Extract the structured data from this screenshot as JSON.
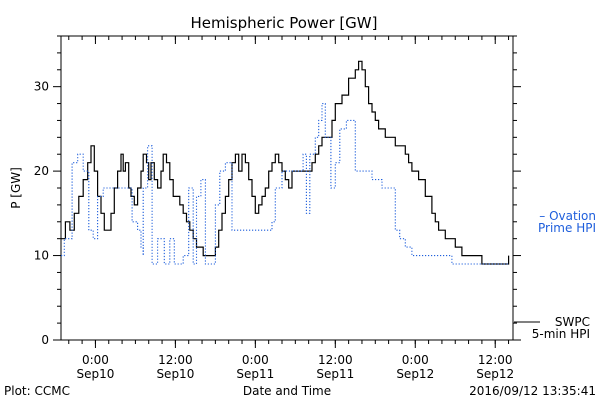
{
  "chart_data": {
    "type": "line",
    "title": "Hemispheric Power [GW]",
    "xlabel": "Date and Time",
    "ylabel": "P [GW]",
    "ylim": [
      0,
      36
    ],
    "yticks": [
      0,
      10,
      20,
      30
    ],
    "xlim": [
      "2016-09-09T18:50",
      "2016-09-12T14:40"
    ],
    "xticks": [
      {
        "t": "2016-09-10T00:00",
        "time": "0:00",
        "date": "Sep10"
      },
      {
        "t": "2016-09-10T12:00",
        "time": "12:00",
        "date": "Sep10"
      },
      {
        "t": "2016-09-11T00:00",
        "time": "0:00",
        "date": "Sep11"
      },
      {
        "t": "2016-09-11T12:00",
        "time": "12:00",
        "date": "Sep11"
      },
      {
        "t": "2016-09-12T00:00",
        "time": "0:00",
        "date": "Sep12"
      },
      {
        "t": "2016-09-12T12:00",
        "time": "12:00",
        "date": "Sep12"
      }
    ],
    "grid": false,
    "footer": {
      "left": "Plot: CCMC",
      "right": "2016/09/12 13:35:41"
    },
    "series": [
      {
        "name": "SWPC 5-min HPI",
        "legend_lines": [
          "SWPC",
          "5-min HPI"
        ],
        "color": "#000000",
        "style": "solid",
        "points": [
          [
            "2016-09-09T18:50",
            12
          ],
          [
            "2016-09-09T19:30",
            14
          ],
          [
            "2016-09-09T20:10",
            13
          ],
          [
            "2016-09-09T20:50",
            15
          ],
          [
            "2016-09-09T21:30",
            17
          ],
          [
            "2016-09-09T22:10",
            19
          ],
          [
            "2016-09-09T22:50",
            21
          ],
          [
            "2016-09-09T23:20",
            23
          ],
          [
            "2016-09-09T23:50",
            20
          ],
          [
            "2016-09-10T00:20",
            17
          ],
          [
            "2016-09-10T00:50",
            15
          ],
          [
            "2016-09-10T01:20",
            13
          ],
          [
            "2016-09-10T01:50",
            13
          ],
          [
            "2016-09-10T02:20",
            15
          ],
          [
            "2016-09-10T02:50",
            18
          ],
          [
            "2016-09-10T03:20",
            20
          ],
          [
            "2016-09-10T03:50",
            22
          ],
          [
            "2016-09-10T04:10",
            20
          ],
          [
            "2016-09-10T04:30",
            21
          ],
          [
            "2016-09-10T05:00",
            18
          ],
          [
            "2016-09-10T05:20",
            17
          ],
          [
            "2016-09-10T05:50",
            16
          ],
          [
            "2016-09-10T06:20",
            18
          ],
          [
            "2016-09-10T06:50",
            20
          ],
          [
            "2016-09-10T07:10",
            22
          ],
          [
            "2016-09-10T07:40",
            21
          ],
          [
            "2016-09-10T08:00",
            19
          ],
          [
            "2016-09-10T08:20",
            21
          ],
          [
            "2016-09-10T08:50",
            19
          ],
          [
            "2016-09-10T09:20",
            18
          ],
          [
            "2016-09-10T09:50",
            20
          ],
          [
            "2016-09-10T10:10",
            22
          ],
          [
            "2016-09-10T10:40",
            21
          ],
          [
            "2016-09-10T11:10",
            19
          ],
          [
            "2016-09-10T11:40",
            17
          ],
          [
            "2016-09-10T12:10",
            17
          ],
          [
            "2016-09-10T12:40",
            16
          ],
          [
            "2016-09-10T13:10",
            15
          ],
          [
            "2016-09-10T13:40",
            14
          ],
          [
            "2016-09-10T14:10",
            13
          ],
          [
            "2016-09-10T14:40",
            12
          ],
          [
            "2016-09-10T15:10",
            11
          ],
          [
            "2016-09-10T15:40",
            11
          ],
          [
            "2016-09-10T16:10",
            10
          ],
          [
            "2016-09-10T16:40",
            10
          ],
          [
            "2016-09-10T17:20",
            10
          ],
          [
            "2016-09-10T18:00",
            11
          ],
          [
            "2016-09-10T18:30",
            13
          ],
          [
            "2016-09-10T19:00",
            15
          ],
          [
            "2016-09-10T19:30",
            17
          ],
          [
            "2016-09-10T20:00",
            19
          ],
          [
            "2016-09-10T20:30",
            21
          ],
          [
            "2016-09-10T21:00",
            22
          ],
          [
            "2016-09-10T21:30",
            20
          ],
          [
            "2016-09-10T22:00",
            22
          ],
          [
            "2016-09-10T22:30",
            21
          ],
          [
            "2016-09-10T23:00",
            19
          ],
          [
            "2016-09-10T23:30",
            17
          ],
          [
            "2016-09-11T00:00",
            15
          ],
          [
            "2016-09-11T00:30",
            16
          ],
          [
            "2016-09-11T01:00",
            17
          ],
          [
            "2016-09-11T01:30",
            18
          ],
          [
            "2016-09-11T02:00",
            20
          ],
          [
            "2016-09-11T02:30",
            21
          ],
          [
            "2016-09-11T03:00",
            22
          ],
          [
            "2016-09-11T03:30",
            21
          ],
          [
            "2016-09-11T04:00",
            20
          ],
          [
            "2016-09-11T04:30",
            19
          ],
          [
            "2016-09-11T05:00",
            18
          ],
          [
            "2016-09-11T05:30",
            20
          ],
          [
            "2016-09-11T06:30",
            20
          ],
          [
            "2016-09-11T07:30",
            20
          ],
          [
            "2016-09-11T08:30",
            21
          ],
          [
            "2016-09-11T09:00",
            22
          ],
          [
            "2016-09-11T09:30",
            23
          ],
          [
            "2016-09-11T10:00",
            24
          ],
          [
            "2016-09-11T11:00",
            24
          ],
          [
            "2016-09-11T11:30",
            26
          ],
          [
            "2016-09-11T12:00",
            28
          ],
          [
            "2016-09-11T13:00",
            29
          ],
          [
            "2016-09-11T14:00",
            31
          ],
          [
            "2016-09-11T15:00",
            32
          ],
          [
            "2016-09-11T15:30",
            33
          ],
          [
            "2016-09-11T16:00",
            32
          ],
          [
            "2016-09-11T16:30",
            30
          ],
          [
            "2016-09-11T17:00",
            28
          ],
          [
            "2016-09-11T17:30",
            27
          ],
          [
            "2016-09-11T18:00",
            26
          ],
          [
            "2016-09-11T18:30",
            25
          ],
          [
            "2016-09-11T19:00",
            25
          ],
          [
            "2016-09-11T19:30",
            24
          ],
          [
            "2016-09-11T20:00",
            24
          ],
          [
            "2016-09-11T20:30",
            24
          ],
          [
            "2016-09-11T21:00",
            23
          ],
          [
            "2016-09-11T21:30",
            23
          ],
          [
            "2016-09-11T22:00",
            23
          ],
          [
            "2016-09-11T22:30",
            22
          ],
          [
            "2016-09-11T23:00",
            21
          ],
          [
            "2016-09-11T23:30",
            20
          ],
          [
            "2016-09-12T00:30",
            19
          ],
          [
            "2016-09-12T01:30",
            17
          ],
          [
            "2016-09-12T02:30",
            15
          ],
          [
            "2016-09-12T03:00",
            14
          ],
          [
            "2016-09-12T03:30",
            13
          ],
          [
            "2016-09-12T04:00",
            13
          ],
          [
            "2016-09-12T04:30",
            12
          ],
          [
            "2016-09-12T05:00",
            12
          ],
          [
            "2016-09-12T06:00",
            11
          ],
          [
            "2016-09-12T06:30",
            11
          ],
          [
            "2016-09-12T07:00",
            10
          ],
          [
            "2016-09-12T08:00",
            10
          ],
          [
            "2016-09-12T09:00",
            10
          ],
          [
            "2016-09-12T10:00",
            9
          ],
          [
            "2016-09-12T11:00",
            9
          ],
          [
            "2016-09-12T12:00",
            9
          ],
          [
            "2016-09-12T13:00",
            9
          ],
          [
            "2016-09-12T14:00",
            10
          ]
        ]
      },
      {
        "name": "Ovation Prime HPI",
        "legend_lines": [
          "– Ovation",
          "Prime HPI"
        ],
        "color": "#1f5fdc",
        "style": "dotted",
        "points": [
          [
            "2016-09-09T18:50",
            10
          ],
          [
            "2016-09-09T19:20",
            10
          ],
          [
            "2016-09-09T19:20",
            12
          ],
          [
            "2016-09-09T20:30",
            12
          ],
          [
            "2016-09-09T20:30",
            21
          ],
          [
            "2016-09-09T21:20",
            21
          ],
          [
            "2016-09-09T21:20",
            22
          ],
          [
            "2016-09-09T22:10",
            22
          ],
          [
            "2016-09-09T22:10",
            20
          ],
          [
            "2016-09-09T23:00",
            20
          ],
          [
            "2016-09-09T23:00",
            13
          ],
          [
            "2016-09-09T23:40",
            13
          ],
          [
            "2016-09-09T23:40",
            12
          ],
          [
            "2016-09-10T00:20",
            12
          ],
          [
            "2016-09-10T00:20",
            17
          ],
          [
            "2016-09-10T01:10",
            17
          ],
          [
            "2016-09-10T01:10",
            18
          ],
          [
            "2016-09-10T03:20",
            18
          ],
          [
            "2016-09-10T03:20",
            18
          ],
          [
            "2016-09-10T05:30",
            18
          ],
          [
            "2016-09-10T05:30",
            14
          ],
          [
            "2016-09-10T06:20",
            13
          ],
          [
            "2016-09-10T06:50",
            11
          ],
          [
            "2016-09-10T07:10",
            10
          ],
          [
            "2016-09-10T07:10",
            18
          ],
          [
            "2016-09-10T07:50",
            18
          ],
          [
            "2016-09-10T07:50",
            23
          ],
          [
            "2016-09-10T08:30",
            23
          ],
          [
            "2016-09-10T08:30",
            9
          ],
          [
            "2016-09-10T09:20",
            9
          ],
          [
            "2016-09-10T09:20",
            12
          ],
          [
            "2016-09-10T10:20",
            12
          ],
          [
            "2016-09-10T10:20",
            9
          ],
          [
            "2016-09-10T11:10",
            9
          ],
          [
            "2016-09-10T11:10",
            12
          ],
          [
            "2016-09-10T11:50",
            12
          ],
          [
            "2016-09-10T11:50",
            9
          ],
          [
            "2016-09-10T13:10",
            9
          ],
          [
            "2016-09-10T13:10",
            10
          ],
          [
            "2016-09-10T14:00",
            10
          ],
          [
            "2016-09-10T14:00",
            18
          ],
          [
            "2016-09-10T14:40",
            18
          ],
          [
            "2016-09-10T14:40",
            9
          ],
          [
            "2016-09-10T15:10",
            9
          ],
          [
            "2016-09-10T15:10",
            17
          ],
          [
            "2016-09-10T15:50",
            17
          ],
          [
            "2016-09-10T15:50",
            19
          ],
          [
            "2016-09-10T16:30",
            19
          ],
          [
            "2016-09-10T16:30",
            9
          ],
          [
            "2016-09-10T18:00",
            9
          ],
          [
            "2016-09-10T18:00",
            16
          ],
          [
            "2016-09-10T18:40",
            16
          ],
          [
            "2016-09-10T18:40",
            20
          ],
          [
            "2016-09-10T19:30",
            20
          ],
          [
            "2016-09-10T19:30",
            21
          ],
          [
            "2016-09-10T20:30",
            21
          ],
          [
            "2016-09-10T20:30",
            13
          ],
          [
            "2016-09-11T01:30",
            13
          ],
          [
            "2016-09-11T02:30",
            14
          ],
          [
            "2016-09-11T03:00",
            15
          ],
          [
            "2016-09-11T03:00",
            18
          ],
          [
            "2016-09-11T04:00",
            18
          ],
          [
            "2016-09-11T04:00",
            20
          ],
          [
            "2016-09-11T07:10",
            20
          ],
          [
            "2016-09-11T07:10",
            22
          ],
          [
            "2016-09-11T07:40",
            22
          ],
          [
            "2016-09-11T07:40",
            15
          ],
          [
            "2016-09-11T08:10",
            15
          ],
          [
            "2016-09-11T08:10",
            22
          ],
          [
            "2016-09-11T09:00",
            22
          ],
          [
            "2016-09-11T09:00",
            24
          ],
          [
            "2016-09-11T09:30",
            24
          ],
          [
            "2016-09-11T09:30",
            26
          ],
          [
            "2016-09-11T10:00",
            26
          ],
          [
            "2016-09-11T10:00",
            28
          ],
          [
            "2016-09-11T10:30",
            28
          ],
          [
            "2016-09-11T10:30",
            24
          ],
          [
            "2016-09-11T11:20",
            24
          ],
          [
            "2016-09-11T11:20",
            18
          ],
          [
            "2016-09-11T12:00",
            18
          ],
          [
            "2016-09-11T12:00",
            21
          ],
          [
            "2016-09-11T12:40",
            21
          ],
          [
            "2016-09-11T12:40",
            25
          ],
          [
            "2016-09-11T13:40",
            25
          ],
          [
            "2016-09-11T13:40",
            26
          ],
          [
            "2016-09-11T15:00",
            26
          ],
          [
            "2016-09-11T15:00",
            20
          ],
          [
            "2016-09-11T17:30",
            20
          ],
          [
            "2016-09-11T17:30",
            19
          ],
          [
            "2016-09-11T19:00",
            19
          ],
          [
            "2016-09-11T19:00",
            18
          ],
          [
            "2016-09-11T21:00",
            18
          ],
          [
            "2016-09-11T21:00",
            13
          ],
          [
            "2016-09-11T21:40",
            13
          ],
          [
            "2016-09-11T21:40",
            12
          ],
          [
            "2016-09-11T22:30",
            11
          ],
          [
            "2016-09-11T23:30",
            10
          ],
          [
            "2016-09-12T05:30",
            10
          ],
          [
            "2016-09-12T05:30",
            9
          ],
          [
            "2016-09-12T14:00",
            9
          ]
        ]
      }
    ]
  }
}
